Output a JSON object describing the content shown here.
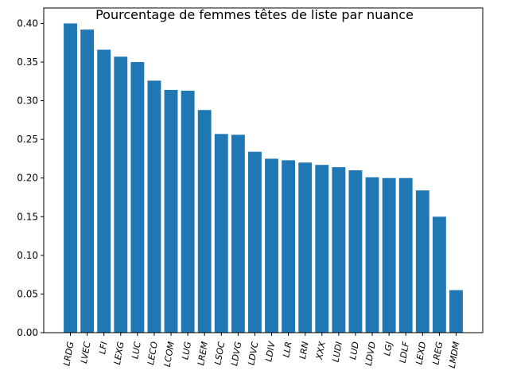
{
  "chart_data": {
    "type": "bar",
    "title": "Pourcentage de femmes têtes de liste par nuance",
    "xlabel": "",
    "ylabel": "",
    "ylim": [
      0,
      0.42
    ],
    "yticks": [
      "0.00",
      "0.05",
      "0.10",
      "0.15",
      "0.20",
      "0.25",
      "0.30",
      "0.35",
      "0.40"
    ],
    "categories": [
      "LRDG",
      "LVEC",
      "LFI",
      "LEXG",
      "LUC",
      "LECO",
      "LCOM",
      "LUG",
      "LREM",
      "LSOC",
      "LDVG",
      "LDVC",
      "LDIV",
      "LLR",
      "LRN",
      "XXX",
      "LUDI",
      "LUD",
      "LDVD",
      "LGJ",
      "LDLF",
      "LEXD",
      "LREG",
      "LMDM"
    ],
    "values": [
      0.4,
      0.392,
      0.366,
      0.357,
      0.35,
      0.326,
      0.314,
      0.313,
      0.288,
      0.257,
      0.256,
      0.234,
      0.225,
      0.223,
      0.22,
      0.217,
      0.214,
      0.21,
      0.201,
      0.2,
      0.2,
      0.184,
      0.15,
      0.055
    ],
    "bar_color": "#1f77b4",
    "grid": false,
    "legend": "none"
  }
}
